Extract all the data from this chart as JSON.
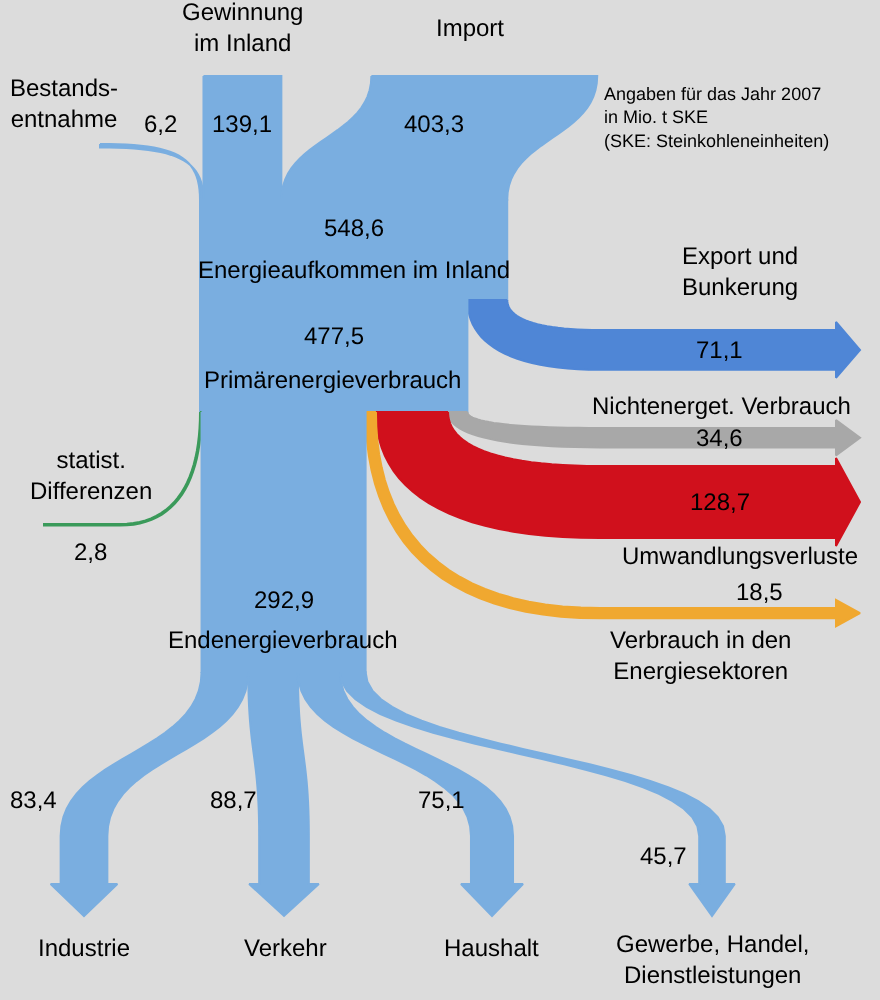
{
  "chart_data": {
    "type": "other",
    "categories": [
      "Bestands-\nentnahme",
      "Gewinnung\nim Inland",
      "Import",
      "Energieaufkommen im Inland",
      "Export und\nBunkerung",
      "Primärenergieverbrauch",
      "Nichtenerget. Verbrauch",
      "Umwandlungsverluste",
      "Verbrauch in den\nEnergiesektoren",
      "statist.\nDifferenzen",
      "Endenergieverbrauch",
      "Industrie",
      "Verkehr",
      "Haushalt",
      "Gewerbe, Handel,\nDienstleistungen"
    ],
    "values": [
      6.2,
      139.1,
      403.3,
      548.6,
      71.1,
      477.5,
      34.6,
      128.7,
      18.5,
      2.8,
      292.9,
      83.4,
      88.7,
      75.1,
      45.7
    ],
    "value_labels": [
      "6,2",
      "139,1",
      "403,3",
      "548,6",
      "71,1",
      "477,5",
      "34,6",
      "128,7",
      "18,5",
      "2,8",
      "292,9",
      "83,4",
      "88,7",
      "75,1",
      "45,7"
    ],
    "colors": [
      "#7aaee0",
      "#7aaee0",
      "#7aaee0",
      "#7aaee0",
      "#4f86d6",
      "#7aaee0",
      "#a8a8a8",
      "#d0101c",
      "#f0a830",
      "#3a9a5a",
      "#7aaee0",
      "#7aaee0",
      "#7aaee0",
      "#7aaee0",
      "#7aaee0"
    ],
    "annotations": [
      "Angaben für das Jahr 2007\nin Mio. t SKE\n(SKE: Steinkohleneinheiten)"
    ]
  }
}
